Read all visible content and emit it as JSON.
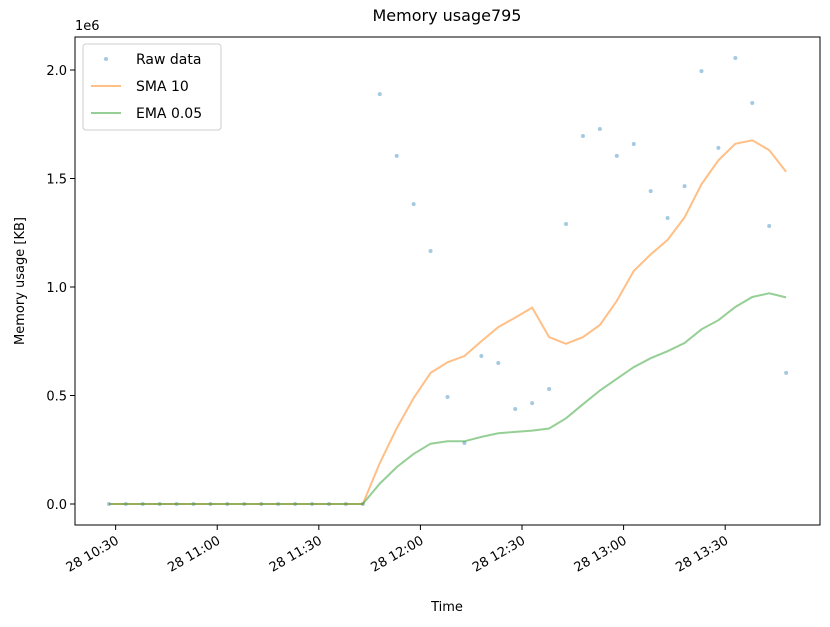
{
  "chart_data": {
    "type": "line",
    "title": "Memory usage795",
    "x_label": "Time",
    "y_label": "Memory usage [KB]",
    "y_offset_label": "1e6",
    "x": [
      "28 10:28",
      "28 10:33",
      "28 10:38",
      "28 10:43",
      "28 10:48",
      "28 10:53",
      "28 10:58",
      "28 11:03",
      "28 11:08",
      "28 11:13",
      "28 11:18",
      "28 11:23",
      "28 11:28",
      "28 11:33",
      "28 11:38",
      "28 11:43",
      "28 11:48",
      "28 11:53",
      "28 11:58",
      "28 12:03",
      "28 12:08",
      "28 12:13",
      "28 12:18",
      "28 12:23",
      "28 12:28",
      "28 12:33",
      "28 12:38",
      "28 12:43",
      "28 12:48",
      "28 12:53",
      "28 12:58",
      "28 13:03",
      "28 13:08",
      "28 13:13",
      "28 13:18",
      "28 13:23",
      "28 13:28",
      "28 13:33",
      "28 13:38",
      "28 13:43",
      "28 13:48"
    ],
    "series": [
      {
        "name": "Raw data",
        "color": "#1f77b4",
        "style": "markers",
        "values": [
          0,
          0,
          0,
          0,
          0,
          0,
          0,
          0,
          0,
          0,
          0,
          0,
          0,
          0,
          0,
          0,
          1889000,
          1604000,
          1382000,
          1166000,
          493000,
          281000,
          682000,
          650000,
          438000,
          465000,
          530000,
          1290000,
          1696000,
          1728000,
          1604000,
          1659000,
          1442000,
          1318000,
          1465000,
          1995000,
          1641000,
          2055000,
          1848000,
          1281000,
          604000
        ]
      },
      {
        "name": "SMA 10",
        "color": "#ff7f0e",
        "style": "line",
        "values": [
          0,
          0,
          0,
          0,
          0,
          0,
          0,
          0,
          0,
          0,
          0,
          0,
          0,
          0,
          0,
          0,
          189000,
          349000,
          488000,
          604000,
          653000,
          682000,
          750000,
          815000,
          859000,
          905000,
          769000,
          738000,
          769000,
          825000,
          936000,
          1074000,
          1150000,
          1217000,
          1320000,
          1473000,
          1584000,
          1660000,
          1676000,
          1631000,
          1531000
        ]
      },
      {
        "name": "EMA 0.05",
        "color": "#2ca02c",
        "style": "line",
        "values": [
          0,
          0,
          0,
          0,
          0,
          0,
          0,
          0,
          0,
          0,
          0,
          0,
          0,
          0,
          0,
          0,
          94000,
          170000,
          231000,
          278000,
          289000,
          289000,
          309000,
          326000,
          332000,
          338000,
          348000,
          395000,
          460000,
          523000,
          577000,
          631000,
          672000,
          704000,
          742000,
          805000,
          847000,
          908000,
          954000,
          971000,
          952000
        ]
      }
    ],
    "xlim": [
      "28 10:18",
      "28 13:58"
    ],
    "xticks": [
      "28 10:30",
      "28 11:00",
      "28 11:30",
      "28 12:00",
      "28 12:30",
      "28 13:00",
      "28 13:30"
    ],
    "ylim": [
      -96800,
      2152000
    ],
    "yticks": [
      {
        "value": 0,
        "label": "0.0"
      },
      {
        "value": 500000,
        "label": "0.5"
      },
      {
        "value": 1000000,
        "label": "1.0"
      },
      {
        "value": 1500000,
        "label": "1.5"
      },
      {
        "value": 2000000,
        "label": "2.0"
      }
    ],
    "legend": "upper left"
  }
}
